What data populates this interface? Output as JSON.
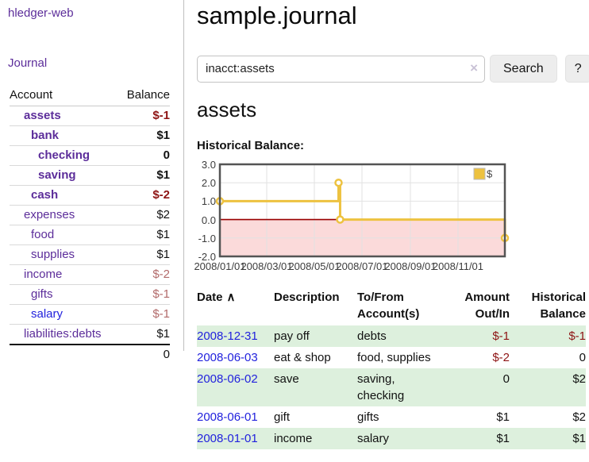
{
  "app": {
    "brand": "hledger-web",
    "nav_journal": "Journal"
  },
  "colors": {
    "brand-purple": "#5c2d9a",
    "link-blue": "#2222dd",
    "neg-strong": "#8e1414",
    "neg-muted": "#b26a6a",
    "row-green": "#ddf0dd",
    "chart-gold": "#EDC240",
    "chart-pink": "#fbdada",
    "chart-zero": "#990000",
    "chart-grid": "#e2e2e2",
    "chart-border": "#545454"
  },
  "sidebar": {
    "col_account": "Account",
    "col_balance": "Balance",
    "accounts": [
      {
        "name": "assets",
        "balance": "$-1",
        "level": 0,
        "bold": true,
        "neg": "strong"
      },
      {
        "name": "bank",
        "balance": "$1",
        "level": 1,
        "bold": true,
        "neg": "none"
      },
      {
        "name": "checking",
        "balance": "0",
        "level": 2,
        "bold": true,
        "neg": "none"
      },
      {
        "name": "saving",
        "balance": "$1",
        "level": 2,
        "bold": true,
        "neg": "none"
      },
      {
        "name": "cash",
        "balance": "$-2",
        "level": 1,
        "bold": true,
        "neg": "strong"
      },
      {
        "name": "expenses",
        "balance": "$2",
        "level": 0,
        "bold": false,
        "neg": "none"
      },
      {
        "name": "food",
        "balance": "$1",
        "level": 1,
        "bold": false,
        "neg": "none"
      },
      {
        "name": "supplies",
        "balance": "$1",
        "level": 1,
        "bold": false,
        "neg": "none"
      },
      {
        "name": "income",
        "balance": "$-2",
        "level": 0,
        "bold": false,
        "neg": "muted"
      },
      {
        "name": "gifts",
        "balance": "$-1",
        "level": 1,
        "bold": false,
        "neg": "muted"
      },
      {
        "name": "salary",
        "balance": "$-1",
        "level": 1,
        "bold": false,
        "neg": "muted",
        "blue": true
      },
      {
        "name": "liabilities:debts",
        "balance": "$1",
        "level": 0,
        "bold": false,
        "neg": "none"
      }
    ],
    "total": "0"
  },
  "header": {
    "title": "sample.journal"
  },
  "search": {
    "value": "inacct:assets",
    "clear_label": "×",
    "button_label": "Search",
    "help_label": "?"
  },
  "account_page": {
    "heading": "assets",
    "chart_label": "Historical Balance:"
  },
  "chart_data": {
    "type": "line",
    "step": true,
    "series": [
      {
        "name": "$",
        "points": [
          {
            "date": "2008-01-01",
            "value": 1
          },
          {
            "date": "2008-06-01",
            "value": 2
          },
          {
            "date": "2008-06-03",
            "value": 0
          },
          {
            "date": "2008-12-31",
            "value": -1
          }
        ]
      }
    ],
    "x_range": [
      "2008-01-01",
      "2008-12-31"
    ],
    "ylim": [
      -2,
      3
    ],
    "x_ticks": [
      "2008/01/01",
      "2008/03/01",
      "2008/05/01",
      "2008/07/01",
      "2008/09/01",
      "2008/11/01"
    ],
    "y_ticks": [
      "3.0",
      "2.0",
      "1.0",
      "0.0",
      "-1.0",
      "-2.0"
    ],
    "grid": true,
    "legend_position": "top-right",
    "negative_region_shaded": true
  },
  "register": {
    "sort_arrow": "∧",
    "headers": [
      "Date",
      "Description",
      "To/From Account(s)",
      "Amount Out/In",
      "Historical Balance"
    ],
    "rows": [
      {
        "date": "2008-12-31",
        "description": "pay off",
        "to_from": "debts",
        "amount": "$-1",
        "amount_neg": true,
        "balance": "$-1",
        "balance_neg": true
      },
      {
        "date": "2008-06-03",
        "description": "eat & shop",
        "to_from": "food, supplies",
        "amount": "$-2",
        "amount_neg": true,
        "balance": "0",
        "balance_neg": false
      },
      {
        "date": "2008-06-02",
        "description": "save",
        "to_from": "saving,\nchecking",
        "amount": "0",
        "amount_neg": false,
        "balance": "$2",
        "balance_neg": false
      },
      {
        "date": "2008-06-01",
        "description": "gift",
        "to_from": "gifts",
        "amount": "$1",
        "amount_neg": false,
        "balance": "$2",
        "balance_neg": false
      },
      {
        "date": "2008-01-01",
        "description": "income",
        "to_from": "salary",
        "amount": "$1",
        "amount_neg": false,
        "balance": "$1",
        "balance_neg": false
      }
    ]
  }
}
